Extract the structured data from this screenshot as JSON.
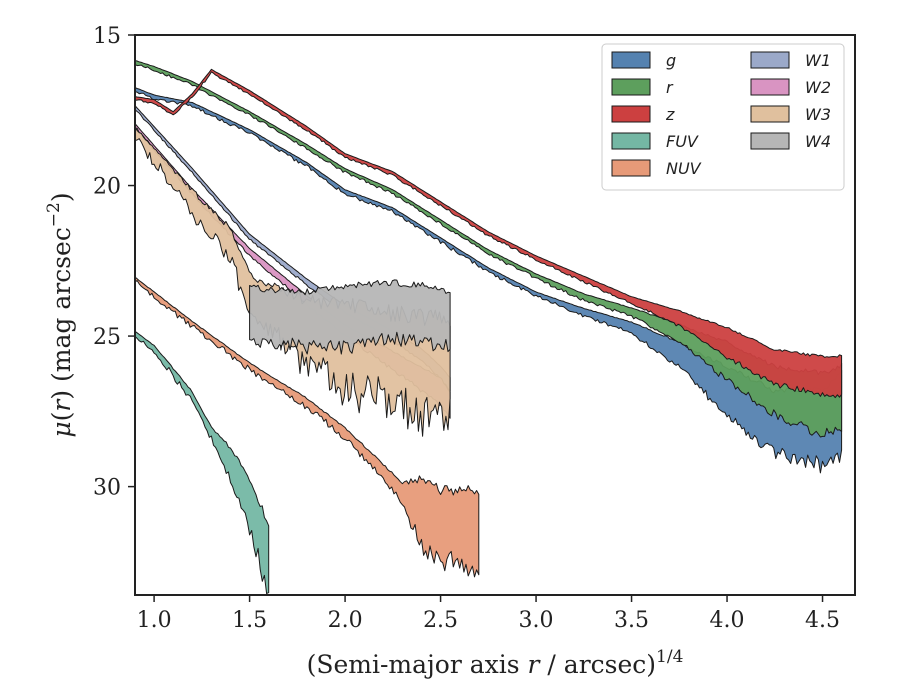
{
  "chart_data": {
    "type": "area",
    "xlabel": "(Semi-major axis r / arcsec)^1/4",
    "ylabel": "μ(r) (mag arcsec⁻²)",
    "xlim": [
      0.9,
      4.67
    ],
    "ylim": [
      33.6,
      15.0
    ],
    "y_inverted": true,
    "x_ticks": [
      1.0,
      1.5,
      2.0,
      2.5,
      3.0,
      3.5,
      4.0,
      4.5
    ],
    "x_tick_labels": [
      "1.0",
      "1.5",
      "2.0",
      "2.5",
      "3.0",
      "3.5",
      "4.0",
      "4.5"
    ],
    "y_ticks": [
      15,
      20,
      25,
      30
    ],
    "y_tick_labels": [
      "15",
      "20",
      "25",
      "30"
    ],
    "legend": {
      "placement": "top-right",
      "columns": 2
    },
    "series": [
      {
        "name": "g",
        "color": "#5582b0",
        "noise": 0.18,
        "points": [
          [
            0.9,
            16.8
          ],
          [
            1.0,
            17.05
          ],
          [
            1.2,
            17.3
          ],
          [
            1.5,
            18.2
          ],
          [
            1.8,
            19.3
          ],
          [
            2.0,
            20.2
          ],
          [
            2.25,
            20.8
          ],
          [
            2.5,
            21.8
          ],
          [
            2.75,
            22.8
          ],
          [
            3.0,
            23.6
          ],
          [
            3.25,
            24.2
          ],
          [
            3.5,
            24.7
          ],
          [
            3.75,
            25.6
          ],
          [
            4.0,
            26.8
          ],
          [
            4.25,
            27.8
          ],
          [
            4.5,
            28.0
          ],
          [
            4.6,
            27.5
          ]
        ],
        "widths": [
          [
            0.9,
            0.1
          ],
          [
            3.0,
            0.12
          ],
          [
            3.5,
            0.3
          ],
          [
            3.8,
            0.8
          ],
          [
            4.0,
            1.4
          ],
          [
            4.6,
            2.3
          ]
        ]
      },
      {
        "name": "r",
        "color": "#5d9f5d",
        "noise": 0.15,
        "points": [
          [
            0.9,
            15.9
          ],
          [
            1.0,
            16.1
          ],
          [
            1.2,
            16.6
          ],
          [
            1.5,
            17.6
          ],
          [
            1.8,
            18.7
          ],
          [
            2.0,
            19.5
          ],
          [
            2.25,
            20.2
          ],
          [
            2.5,
            21.2
          ],
          [
            2.75,
            22.2
          ],
          [
            3.0,
            23.0
          ],
          [
            3.25,
            23.7
          ],
          [
            3.5,
            24.2
          ],
          [
            3.75,
            24.9
          ],
          [
            4.0,
            25.8
          ],
          [
            4.25,
            26.8
          ],
          [
            4.5,
            27.2
          ],
          [
            4.6,
            27.0
          ]
        ],
        "widths": [
          [
            0.9,
            0.1
          ],
          [
            3.0,
            0.12
          ],
          [
            3.5,
            0.25
          ],
          [
            3.8,
            0.6
          ],
          [
            4.0,
            1.1
          ],
          [
            4.6,
            1.9
          ]
        ]
      },
      {
        "name": "z",
        "color": "#cc4040",
        "noise": 0.12,
        "points": [
          [
            0.9,
            17.1
          ],
          [
            1.0,
            17.2
          ],
          [
            1.1,
            17.6
          ],
          [
            1.2,
            17.0
          ],
          [
            1.3,
            16.2
          ],
          [
            1.5,
            16.9
          ],
          [
            1.8,
            18.1
          ],
          [
            2.0,
            19.0
          ],
          [
            2.25,
            19.6
          ],
          [
            2.5,
            20.6
          ],
          [
            2.75,
            21.6
          ],
          [
            3.0,
            22.4
          ],
          [
            3.25,
            23.1
          ],
          [
            3.5,
            23.8
          ],
          [
            3.75,
            24.4
          ],
          [
            4.0,
            25.2
          ],
          [
            4.25,
            26.0
          ],
          [
            4.5,
            26.3
          ],
          [
            4.6,
            26.3
          ]
        ],
        "widths": [
          [
            0.9,
            0.1
          ],
          [
            3.0,
            0.12
          ],
          [
            3.5,
            0.2
          ],
          [
            3.8,
            0.5
          ],
          [
            4.0,
            0.9
          ],
          [
            4.6,
            1.2
          ]
        ]
      },
      {
        "name": "FUV",
        "color": "#74b7a4",
        "noise": 0.3,
        "points": [
          [
            0.9,
            24.9
          ],
          [
            1.0,
            25.4
          ],
          [
            1.1,
            26.2
          ],
          [
            1.2,
            27.0
          ],
          [
            1.3,
            28.2
          ],
          [
            1.4,
            29.2
          ],
          [
            1.5,
            30.5
          ],
          [
            1.55,
            31.4
          ],
          [
            1.6,
            32.3
          ]
        ],
        "widths": [
          [
            0.9,
            0.1
          ],
          [
            1.3,
            0.3
          ],
          [
            1.6,
            1.8
          ]
        ]
      },
      {
        "name": "NUV",
        "color": "#e79a78",
        "noise": 0.3,
        "points": [
          [
            0.9,
            23.1
          ],
          [
            1.2,
            24.6
          ],
          [
            1.5,
            26.0
          ],
          [
            1.8,
            27.2
          ],
          [
            2.0,
            28.2
          ],
          [
            2.2,
            29.5
          ],
          [
            2.3,
            30.2
          ],
          [
            2.4,
            30.8
          ],
          [
            2.5,
            31.2
          ],
          [
            2.6,
            31.3
          ],
          [
            2.7,
            31.3
          ]
        ],
        "widths": [
          [
            0.9,
            0.1
          ],
          [
            2.0,
            0.25
          ],
          [
            2.3,
            0.5
          ],
          [
            2.4,
            1.8
          ],
          [
            2.7,
            2.0
          ]
        ]
      },
      {
        "name": "W1",
        "color": "#9ba9c9",
        "noise": 0.1,
        "points": [
          [
            0.9,
            17.4
          ],
          [
            1.2,
            19.5
          ],
          [
            1.5,
            21.7
          ],
          [
            1.8,
            23.2
          ],
          [
            2.0,
            24.1
          ],
          [
            2.2,
            24.8
          ],
          [
            2.4,
            25.6
          ],
          [
            2.5,
            26.2
          ],
          [
            2.55,
            26.6
          ]
        ],
        "widths": [
          [
            0.9,
            0.1
          ],
          [
            2.0,
            0.2
          ],
          [
            2.55,
            0.4
          ]
        ]
      },
      {
        "name": "W2",
        "color": "#d994c2",
        "noise": 0.15,
        "points": [
          [
            0.9,
            18.0
          ],
          [
            1.2,
            20.2
          ],
          [
            1.5,
            22.2
          ],
          [
            1.8,
            23.8
          ],
          [
            2.0,
            24.8
          ],
          [
            2.2,
            25.6
          ],
          [
            2.4,
            26.4
          ],
          [
            2.5,
            26.8
          ],
          [
            2.55,
            27.3
          ]
        ],
        "widths": [
          [
            0.9,
            0.1
          ],
          [
            2.0,
            0.3
          ],
          [
            2.55,
            0.8
          ]
        ]
      },
      {
        "name": "W3",
        "color": "#e0c09e",
        "noise": 0.55,
        "points": [
          [
            0.9,
            18.2
          ],
          [
            1.2,
            20.5
          ],
          [
            1.4,
            21.9
          ],
          [
            1.5,
            23.5
          ],
          [
            1.8,
            24.8
          ],
          [
            2.0,
            25.2
          ],
          [
            2.2,
            25.5
          ],
          [
            2.4,
            25.8
          ],
          [
            2.55,
            25.9
          ]
        ],
        "widths": [
          [
            0.9,
            0.2
          ],
          [
            1.5,
            0.8
          ],
          [
            2.0,
            1.8
          ],
          [
            2.55,
            2.2
          ]
        ]
      },
      {
        "name": "W4",
        "color": "#b6b6b6",
        "noise": 0.25,
        "points": [
          [
            1.5,
            24.2
          ],
          [
            1.8,
            24.4
          ],
          [
            2.0,
            24.3
          ],
          [
            2.2,
            24.1
          ],
          [
            2.4,
            24.2
          ],
          [
            2.55,
            24.4
          ]
        ],
        "widths": [
          [
            1.5,
            1.4
          ],
          [
            2.0,
            1.6
          ],
          [
            2.55,
            1.5
          ]
        ]
      }
    ]
  }
}
